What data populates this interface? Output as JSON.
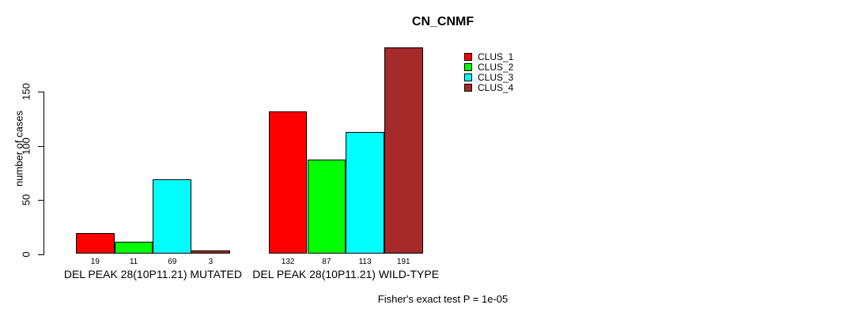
{
  "chart_data": {
    "type": "bar",
    "title": "CN_CNMF",
    "ylabel": "number of cases",
    "xlabel": "",
    "categories": [
      "DEL PEAK 28(10P11.21) MUTATED",
      "DEL PEAK 28(10P11.21) WILD-TYPE"
    ],
    "series": [
      {
        "name": "CLUS_1",
        "color": "#FF0000",
        "values": [
          19,
          132
        ]
      },
      {
        "name": "CLUS_2",
        "color": "#00FF00",
        "values": [
          11,
          87
        ]
      },
      {
        "name": "CLUS_3",
        "color": "#00FFFF",
        "values": [
          69,
          113
        ]
      },
      {
        "name": "CLUS_4",
        "color": "#A52A2A",
        "values": [
          3,
          191
        ]
      }
    ],
    "yticks": [
      0,
      50,
      100,
      150
    ],
    "ylim": [
      0,
      192
    ],
    "grid": false,
    "legend_position": "inside-top-right",
    "bar_value_labels": true,
    "annotation": "Fisher's exact test P = 1e-05"
  }
}
